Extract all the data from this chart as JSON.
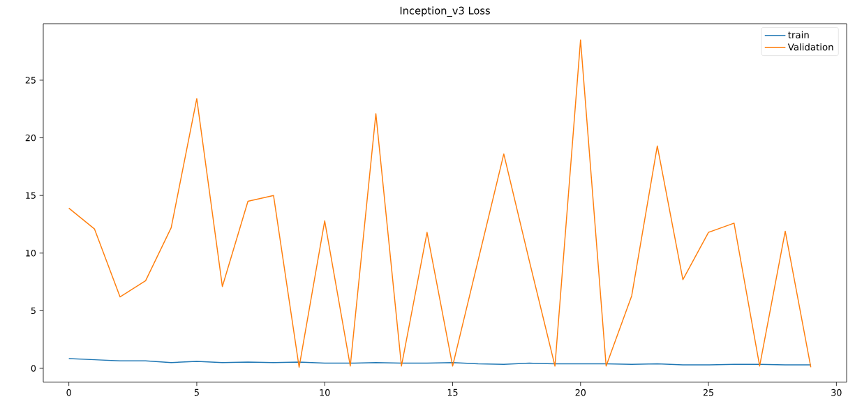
{
  "chart_data": {
    "type": "line",
    "title": "Inception_v3 Loss",
    "x": [
      0,
      1,
      2,
      3,
      4,
      5,
      6,
      7,
      8,
      9,
      10,
      11,
      12,
      13,
      14,
      15,
      16,
      17,
      18,
      19,
      20,
      21,
      22,
      23,
      24,
      25,
      26,
      27,
      28,
      29
    ],
    "series": [
      {
        "name": "train",
        "color": "#1f77b4",
        "values": [
          0.85,
          0.75,
          0.65,
          0.65,
          0.5,
          0.6,
          0.5,
          0.55,
          0.5,
          0.55,
          0.45,
          0.45,
          0.5,
          0.45,
          0.45,
          0.5,
          0.4,
          0.35,
          0.45,
          0.4,
          0.4,
          0.4,
          0.35,
          0.4,
          0.3,
          0.3,
          0.35,
          0.35,
          0.3,
          0.3
        ]
      },
      {
        "name": "Validation",
        "color": "#ff7f0e",
        "values": [
          13.9,
          12.1,
          6.2,
          7.6,
          12.2,
          23.4,
          7.1,
          14.5,
          15.0,
          0.1,
          12.8,
          0.2,
          22.1,
          0.2,
          11.8,
          0.2,
          9.4,
          18.6,
          9.3,
          0.2,
          28.5,
          0.2,
          6.3,
          19.3,
          7.7,
          11.8,
          12.6,
          0.2,
          11.9,
          0.1
        ]
      }
    ],
    "xlim": [
      -1.0,
      30.4
    ],
    "ylim": [
      -1.2,
      29.9
    ],
    "xticks": [
      0,
      5,
      10,
      15,
      20,
      25,
      30
    ],
    "yticks": [
      0,
      5,
      10,
      15,
      20,
      25
    ],
    "legend": "top right",
    "marker": "none",
    "line_style": "solid"
  }
}
